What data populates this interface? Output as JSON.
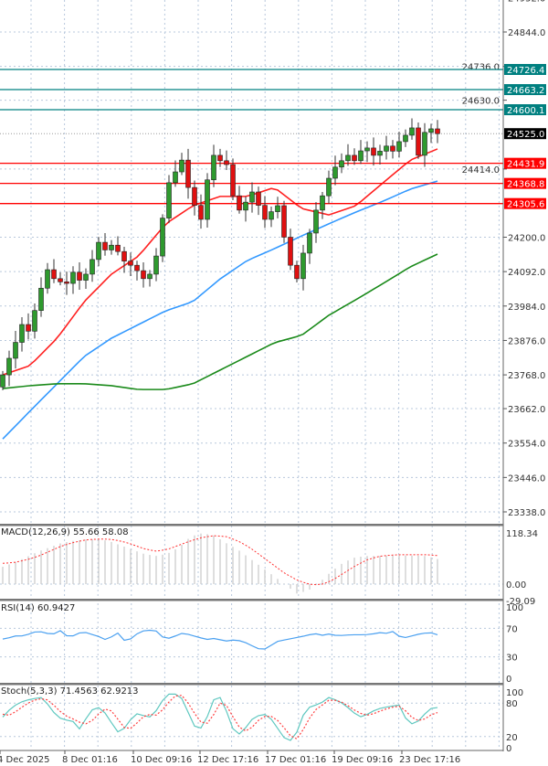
{
  "chart_data": [
    {
      "type": "candlestick",
      "panel": "price",
      "yaxis_ticks": [
        24952.0,
        24844.0,
        24736.0,
        24630.0,
        24414.0,
        24200.0,
        24092.0,
        23984.0,
        23876.0,
        23768.0,
        23662.0,
        23554.0,
        23446.0,
        23338.0
      ],
      "ylim": [
        23300,
        24960
      ],
      "closes": [
        23768,
        23820,
        23870,
        23926,
        23905,
        23970,
        24040,
        24098,
        24070,
        24060,
        24055,
        24090,
        24065,
        24084,
        24130,
        24184,
        24160,
        24175,
        24155,
        24125,
        24112,
        24095,
        24070,
        24084,
        24141,
        24260,
        24371,
        24405,
        24442,
        24356,
        24300,
        24256,
        24380,
        24457,
        24440,
        24428,
        24330,
        24285,
        24310,
        24342,
        24300,
        24256,
        24280,
        24299,
        24200,
        24112,
        24070,
        24150,
        24213,
        24285,
        24330,
        24385,
        24420,
        24440,
        24457,
        24440,
        24471,
        24480,
        24457,
        24470,
        24486,
        24470,
        24500,
        24520,
        24543,
        24457,
        24529,
        24540,
        24525
      ],
      "first_open": 23730,
      "moving_averages": [
        {
          "color": "#ff2020",
          "values": [
            23768,
            23797,
            23883,
            23998,
            24084,
            24141,
            24242,
            24299,
            24328,
            24328,
            24356,
            24290,
            24270,
            24299,
            24371,
            24442,
            24477
          ]
        },
        {
          "color": "#3399ff",
          "values": [
            23567,
            23654,
            23740,
            23826,
            23883,
            23926,
            23969,
            23998,
            24069,
            24127,
            24164,
            24204,
            24242,
            24279,
            24313,
            24351,
            24376
          ]
        },
        {
          "color": "#1a8a1a",
          "values": [
            23725,
            23734,
            23740,
            23740,
            23734,
            23722,
            23722,
            23740,
            23783,
            23826,
            23869,
            23892,
            23955,
            24004,
            24055,
            24107,
            24147
          ]
        }
      ],
      "levels": [
        {
          "value": "24726.4",
          "color": "#008080"
        },
        {
          "value": "24663.2",
          "color": "#008080"
        },
        {
          "value": "24600.1",
          "color": "#008080"
        },
        {
          "value": "24431.9",
          "color": "#ff0000"
        },
        {
          "value": "24368.8",
          "color": "#ff0000"
        },
        {
          "value": "24305.6",
          "color": "#ff0000"
        }
      ],
      "current_price": "24525.0",
      "up_color": "#2e9a2e",
      "down_color": "#e01010"
    },
    {
      "type": "bar",
      "panel": "macd",
      "label": "MACD(12,26,9) 55.66 58.08",
      "yaxis_ticks": [
        "118.34",
        "0.00",
        "-29.09"
      ],
      "ylim": [
        -29.09,
        118.34
      ],
      "histogram_keypoints": [
        40,
        50,
        62,
        75,
        85,
        95,
        100,
        103,
        104,
        100,
        90,
        80,
        70,
        65,
        70,
        85,
        110,
        118,
        112,
        95,
        80,
        60,
        40,
        20,
        0,
        -22,
        -15,
        5,
        30,
        50,
        62,
        65,
        65,
        66,
        66,
        66,
        65,
        58
      ],
      "signal_keypoints": [
        48,
        50,
        56,
        64,
        76,
        88,
        96,
        102,
        104,
        104,
        100,
        92,
        82,
        76,
        80,
        90,
        100,
        108,
        112,
        110,
        100,
        85,
        65,
        45,
        25,
        10,
        0,
        -2,
        8,
        25,
        42,
        56,
        64,
        67,
        68,
        68,
        68,
        66
      ]
    },
    {
      "type": "line",
      "panel": "rsi",
      "label": "RSI(14) 60.9427",
      "yaxis_ticks": [
        "100",
        "70",
        "30",
        "0"
      ],
      "ylim": [
        0,
        100
      ],
      "values": [
        55,
        57,
        60,
        59,
        64,
        66,
        63,
        62,
        67,
        58,
        60,
        66,
        62,
        60,
        54,
        58,
        64,
        50,
        58,
        66,
        67,
        68,
        58,
        56,
        60,
        64,
        60,
        58,
        54,
        56,
        54,
        52,
        54,
        52,
        48,
        42,
        40,
        46,
        52,
        54,
        56,
        58,
        60,
        63,
        60,
        62,
        60,
        60,
        61,
        61,
        61,
        62,
        64,
        63,
        66,
        56,
        58,
        61,
        63,
        64,
        61
      ]
    },
    {
      "type": "line",
      "panel": "stochastic",
      "label": "Stoch(5,3,3) 71.4563 62.9213",
      "yaxis_ticks": [
        "100",
        "80",
        "20",
        "0"
      ],
      "ylim": [
        0,
        100
      ],
      "series": [
        {
          "color": "#5fc8c0",
          "dash": false,
          "values": [
            55,
            70,
            80,
            85,
            88,
            90,
            75,
            55,
            50,
            48,
            32,
            60,
            75,
            66,
            45,
            25,
            40,
            62,
            58,
            55,
            70,
            95,
            98,
            90,
            60,
            30,
            40,
            85,
            90,
            60,
            20,
            30,
            50,
            58,
            60,
            45,
            20,
            12,
            30,
            70,
            75,
            80,
            90,
            85,
            78,
            65,
            55,
            60,
            68,
            72,
            74,
            78,
            50,
            40,
            55,
            70,
            72
          ]
        },
        {
          "color": "#ff4040",
          "dash": true,
          "values": [
            60,
            58,
            68,
            78,
            85,
            88,
            85,
            70,
            58,
            52,
            45,
            42,
            55,
            70,
            66,
            48,
            30,
            40,
            55,
            60,
            58,
            75,
            92,
            95,
            78,
            55,
            38,
            55,
            80,
            75,
            45,
            28,
            35,
            50,
            58,
            55,
            40,
            22,
            15,
            40,
            65,
            75,
            85,
            85,
            80,
            70,
            62,
            58,
            62,
            68,
            72,
            75,
            65,
            50,
            48,
            58,
            63
          ]
        }
      ]
    }
  ],
  "x_axis_labels": [
    "4 Dec 2025",
    "8 Dec 01:16",
    "10 Dec 09:16",
    "12 Dec 17:16",
    "17 Dec 01:16",
    "19 Dec 09:16",
    "23 Dec 17:16"
  ]
}
